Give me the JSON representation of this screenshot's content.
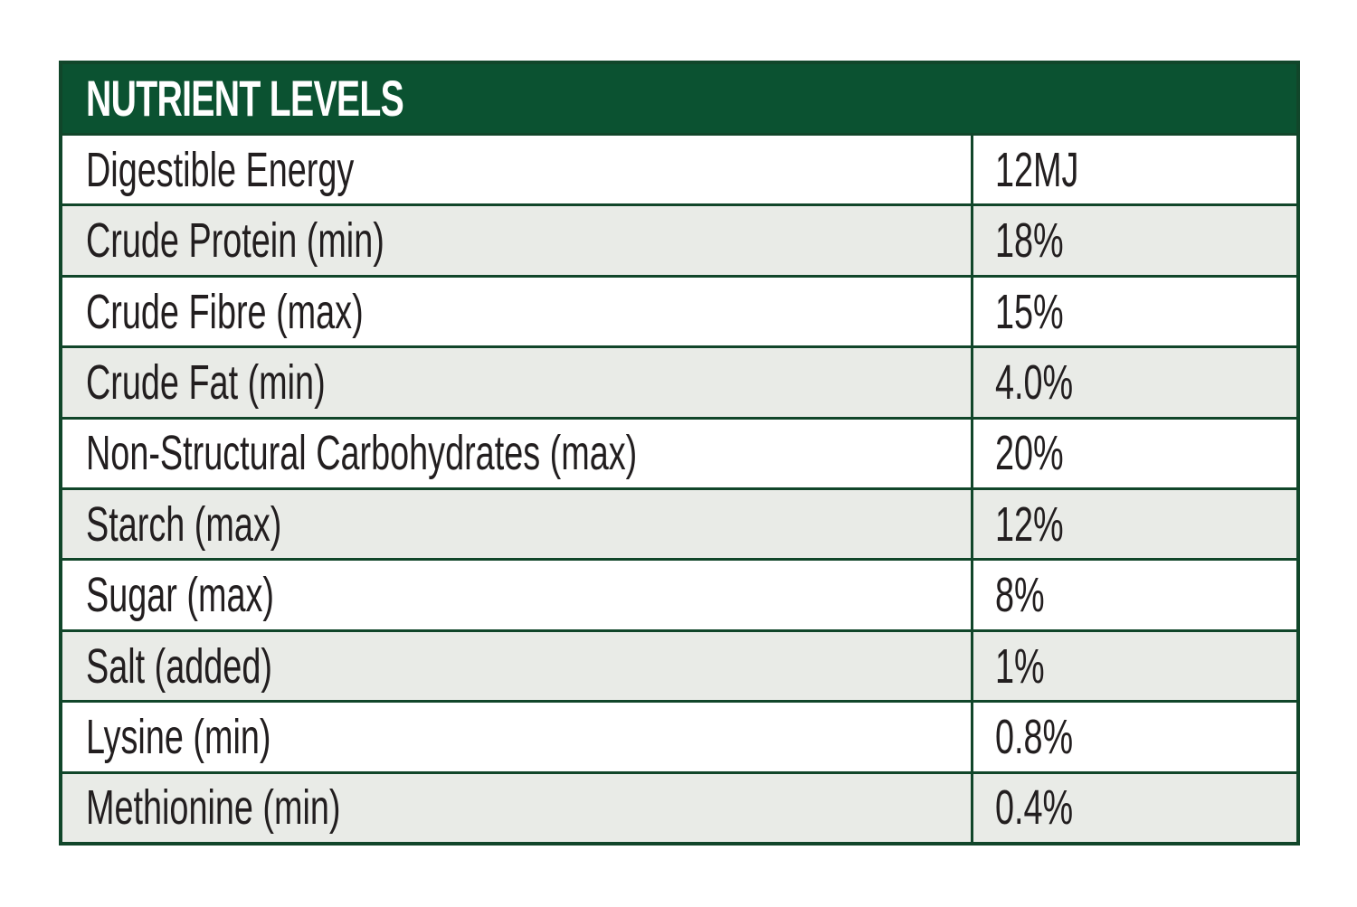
{
  "table": {
    "title": "NUTRIENT LEVELS",
    "rows": [
      {
        "label": "Digestible Energy",
        "value": "12MJ"
      },
      {
        "label": "Crude Protein (min)",
        "value": "18%"
      },
      {
        "label": "Crude Fibre (max)",
        "value": "15%"
      },
      {
        "label": "Crude Fat (min)",
        "value": "4.0%"
      },
      {
        "label": "Non-Structural Carbohydrates (max)",
        "value": "20%"
      },
      {
        "label": "Starch (max)",
        "value": "12%"
      },
      {
        "label": "Sugar (max)",
        "value": "8%"
      },
      {
        "label": "Salt (added)",
        "value": "1%"
      },
      {
        "label": "Lysine (min)",
        "value": "0.8%"
      },
      {
        "label": "Methionine (min)",
        "value": "0.4%"
      }
    ]
  },
  "colors": {
    "header_bg": "#0b5231",
    "header_text": "#ffffff",
    "border": "#11462a",
    "row_alt_bg": "#e9ebe7",
    "text": "#221e1f"
  }
}
